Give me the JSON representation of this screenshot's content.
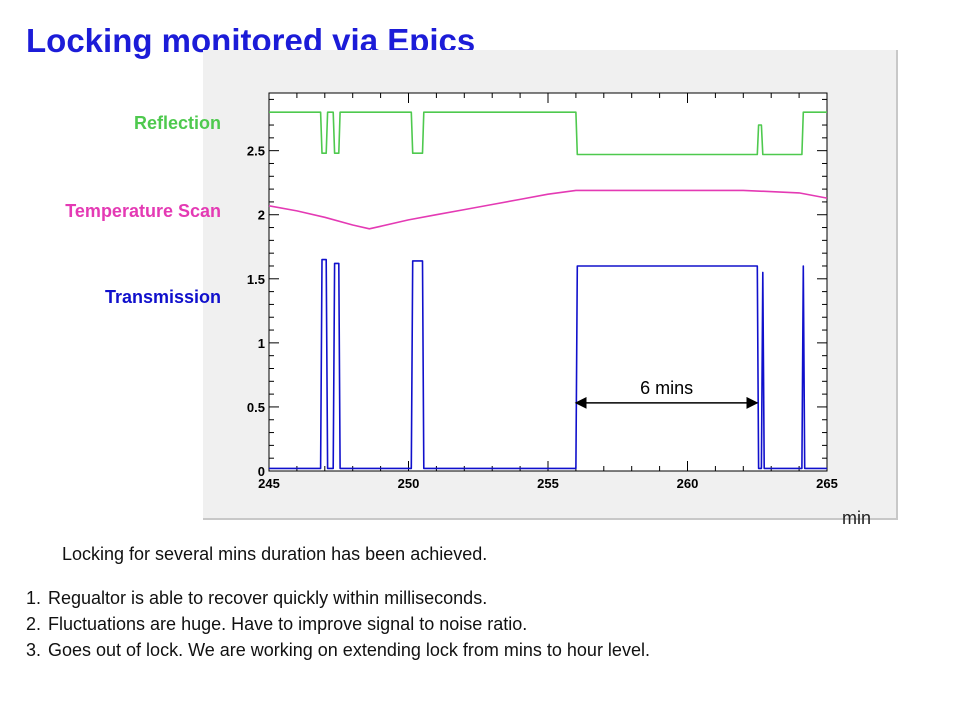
{
  "slide": {
    "title": "Locking monitored via Epics",
    "x_unit": "min",
    "summary": "Locking for several mins duration has been achieved.",
    "notes": [
      "Regualtor is able to recover quickly within milliseconds.",
      "Fluctuations are huge. Have to improve signal to noise ratio.",
      "Goes out of lock. We are working on extending lock from mins to hour level."
    ]
  },
  "chart_data": {
    "type": "line",
    "title": "",
    "xlabel": "min",
    "ylabel": "",
    "xlim": [
      245,
      265
    ],
    "ylim": [
      0,
      2.95
    ],
    "x_ticks": [
      245,
      250,
      255,
      260,
      265
    ],
    "x_tick_labels": [
      "245",
      "250",
      "255",
      "260",
      "265"
    ],
    "y_ticks": [
      0,
      0.5,
      1,
      1.5,
      2,
      2.5
    ],
    "y_tick_labels": [
      "0",
      "0.5",
      "1",
      "1.5",
      "2",
      "2.5"
    ],
    "grid": false,
    "legend": "left-side labels",
    "series": [
      {
        "name": "Reflection",
        "color": "#4ec94e",
        "points": [
          [
            245,
            2.8
          ],
          [
            246.85,
            2.8
          ],
          [
            246.9,
            2.48
          ],
          [
            247.05,
            2.48
          ],
          [
            247.1,
            2.8
          ],
          [
            247.3,
            2.8
          ],
          [
            247.35,
            2.48
          ],
          [
            247.5,
            2.48
          ],
          [
            247.55,
            2.8
          ],
          [
            250.1,
            2.8
          ],
          [
            250.15,
            2.48
          ],
          [
            250.5,
            2.48
          ],
          [
            250.55,
            2.8
          ],
          [
            256.0,
            2.8
          ],
          [
            256.05,
            2.47
          ],
          [
            262.5,
            2.47
          ],
          [
            262.55,
            2.7
          ],
          [
            262.65,
            2.7
          ],
          [
            262.7,
            2.47
          ],
          [
            264.1,
            2.47
          ],
          [
            264.15,
            2.8
          ],
          [
            265,
            2.8
          ]
        ]
      },
      {
        "name": "Temperature Scan",
        "color": "#e43ab4",
        "points": [
          [
            245,
            2.07
          ],
          [
            246,
            2.03
          ],
          [
            247,
            1.98
          ],
          [
            248,
            1.92
          ],
          [
            248.6,
            1.89
          ],
          [
            249,
            1.91
          ],
          [
            250,
            1.96
          ],
          [
            251,
            2.0
          ],
          [
            252,
            2.04
          ],
          [
            253,
            2.08
          ],
          [
            254,
            2.12
          ],
          [
            255,
            2.16
          ],
          [
            256,
            2.19
          ],
          [
            257,
            2.19
          ],
          [
            260,
            2.19
          ],
          [
            262,
            2.19
          ],
          [
            264,
            2.17
          ],
          [
            265,
            2.13
          ]
        ]
      },
      {
        "name": "Transmission",
        "color": "#1010cc",
        "points": [
          [
            245,
            0.02
          ],
          [
            246.85,
            0.02
          ],
          [
            246.9,
            1.65
          ],
          [
            247.05,
            1.65
          ],
          [
            247.1,
            0.02
          ],
          [
            247.3,
            0.02
          ],
          [
            247.35,
            1.62
          ],
          [
            247.5,
            1.62
          ],
          [
            247.55,
            0.02
          ],
          [
            250.1,
            0.02
          ],
          [
            250.15,
            1.64
          ],
          [
            250.5,
            1.64
          ],
          [
            250.55,
            0.02
          ],
          [
            256.0,
            0.02
          ],
          [
            256.05,
            1.6
          ],
          [
            262.5,
            1.6
          ],
          [
            262.55,
            0.02
          ],
          [
            262.65,
            0.02
          ],
          [
            262.7,
            1.55
          ],
          [
            262.75,
            0.02
          ],
          [
            264.1,
            0.02
          ],
          [
            264.15,
            1.6
          ],
          [
            264.2,
            0.02
          ],
          [
            265,
            0.02
          ]
        ]
      }
    ],
    "annotations": [
      {
        "text": "6 mins",
        "x_from": 256,
        "x_to": 262.5,
        "y": 0.75
      }
    ]
  }
}
